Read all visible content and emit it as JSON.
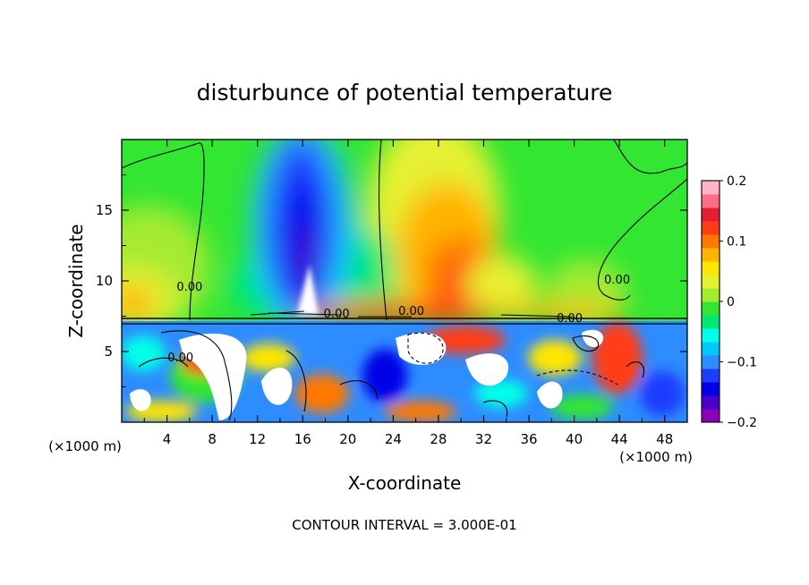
{
  "chart_data": {
    "type": "heatmap",
    "title": "disturbunce of potential temperature",
    "xlabel": "X-coordinate",
    "ylabel": "Z-coordinate",
    "x_unit": "(×1000 m)",
    "z_unit": "(×1000 m)",
    "footer": "CONTOUR INTERVAL = 3.000E-01",
    "xlim": [
      0,
      50
    ],
    "ylim": [
      0,
      20
    ],
    "x_ticks": [
      4,
      8,
      12,
      16,
      20,
      24,
      28,
      32,
      36,
      40,
      44,
      48
    ],
    "y_ticks": [
      5,
      10,
      15
    ],
    "colorbar": {
      "range": [
        -0.2,
        0.2
      ],
      "tick_values": [
        0.2,
        0.1,
        0,
        -0.1,
        -0.2
      ],
      "tick_labels": [
        "0.2",
        "0.1",
        "0",
        "-0.1",
        "-0.2"
      ],
      "colors": [
        "#8b00b4",
        "#4b00c8",
        "#0000e6",
        "#1e3cff",
        "#2d8cff",
        "#00c8ff",
        "#00ffe6",
        "#00e678",
        "#32e632",
        "#a5eb32",
        "#e6f032",
        "#ffe600",
        "#ffb400",
        "#ff7800",
        "#ff3c14",
        "#e61e32",
        "#ff6e82",
        "#ffb4c8"
      ]
    },
    "contour_labels": [
      {
        "text": "0.00",
        "x": 6.0,
        "z": 9.3
      },
      {
        "text": "0.00",
        "x": 19.0,
        "z": 7.4
      },
      {
        "text": "0.00",
        "x": 25.6,
        "z": 7.6
      },
      {
        "text": "0.00",
        "x": 39.6,
        "z": 7.1
      },
      {
        "text": "0.00",
        "x": 43.8,
        "z": 9.8
      },
      {
        "text": "0.00",
        "x": 5.2,
        "z": 4.3
      }
    ],
    "features": [
      {
        "kind": "negative-anomaly",
        "center_x": 15.5,
        "center_z": 13.5,
        "min_value": -0.2
      },
      {
        "kind": "positive-anomaly",
        "center_x": 30.0,
        "center_z": 11.5,
        "max_value": 0.13
      },
      {
        "kind": "positive-anomaly",
        "center_x": 1.5,
        "center_z": 9.5,
        "max_value": 0.08
      },
      {
        "kind": "turbulent-layer",
        "z_top": 7.3
      }
    ]
  }
}
